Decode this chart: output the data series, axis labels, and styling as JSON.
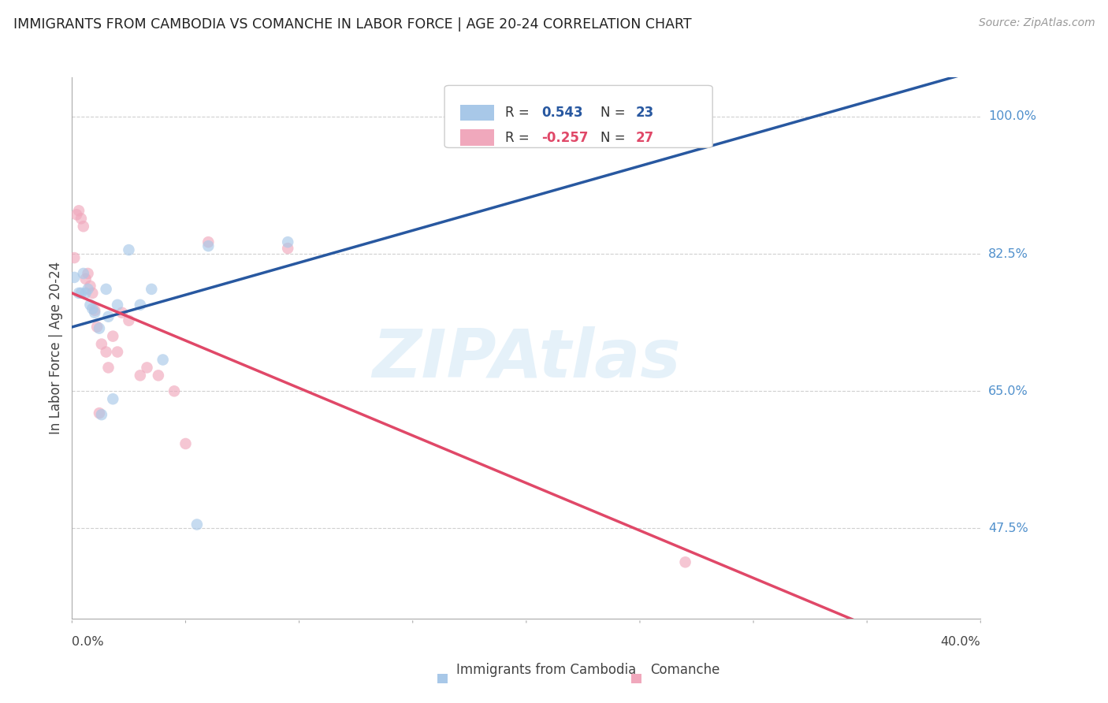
{
  "title": "IMMIGRANTS FROM CAMBODIA VS COMANCHE IN LABOR FORCE | AGE 20-24 CORRELATION CHART",
  "source": "Source: ZipAtlas.com",
  "ylabel": "In Labor Force | Age 20-24",
  "xmin": 0.0,
  "xmax": 0.4,
  "ymin": 0.36,
  "ymax": 1.05,
  "ytick_values": [
    1.0,
    0.825,
    0.65,
    0.475
  ],
  "ytick_labels": [
    "100.0%",
    "82.5%",
    "65.0%",
    "47.5%"
  ],
  "legend_r_cambodia": "0.543",
  "legend_n_cambodia": "23",
  "legend_r_comanche": "-0.257",
  "legend_n_comanche": "27",
  "cambodia_color": "#a8c8e8",
  "comanche_color": "#f0a8bc",
  "cambodia_line_color": "#2858a0",
  "comanche_line_color": "#e04868",
  "marker_size": 110,
  "marker_alpha": 0.65,
  "watermark_text": "ZIPAtlas",
  "background_color": "#ffffff",
  "grid_color": "#d0d0d0",
  "title_color": "#222222",
  "right_tick_color": "#5090cc",
  "cambodia_x": [
    0.001,
    0.003,
    0.004,
    0.005,
    0.006,
    0.007,
    0.008,
    0.009,
    0.01,
    0.012,
    0.013,
    0.015,
    0.016,
    0.018,
    0.02,
    0.025,
    0.03,
    0.035,
    0.04,
    0.055,
    0.06,
    0.095,
    0.275
  ],
  "cambodia_y": [
    0.795,
    0.775,
    0.775,
    0.8,
    0.775,
    0.78,
    0.76,
    0.755,
    0.75,
    0.73,
    0.62,
    0.78,
    0.745,
    0.64,
    0.76,
    0.83,
    0.76,
    0.78,
    0.69,
    0.48,
    0.835,
    0.84,
    1.0
  ],
  "comanche_x": [
    0.001,
    0.002,
    0.003,
    0.004,
    0.005,
    0.006,
    0.007,
    0.008,
    0.009,
    0.01,
    0.011,
    0.012,
    0.013,
    0.015,
    0.016,
    0.018,
    0.02,
    0.022,
    0.025,
    0.03,
    0.033,
    0.038,
    0.045,
    0.05,
    0.06,
    0.095,
    0.27
  ],
  "comanche_y": [
    0.82,
    0.875,
    0.88,
    0.87,
    0.86,
    0.793,
    0.8,
    0.784,
    0.775,
    0.753,
    0.732,
    0.622,
    0.71,
    0.7,
    0.68,
    0.72,
    0.7,
    0.75,
    0.74,
    0.67,
    0.68,
    0.67,
    0.65,
    0.583,
    0.84,
    0.832,
    0.432
  ]
}
